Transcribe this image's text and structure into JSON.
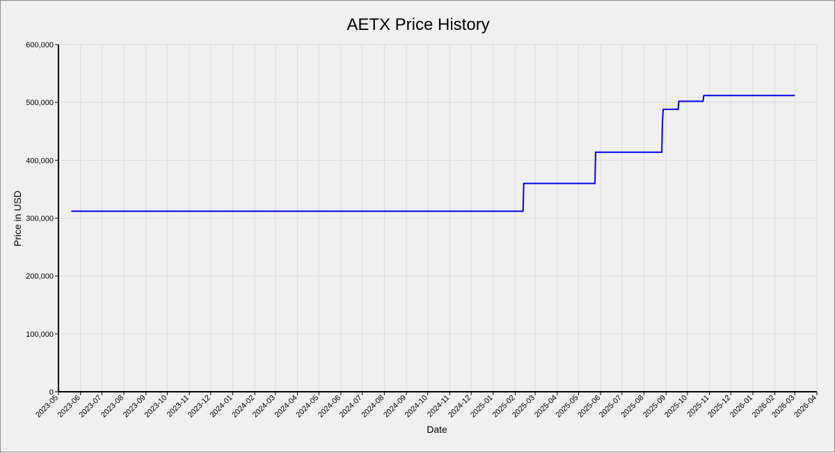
{
  "chart_data": {
    "type": "line",
    "title": "AETX Price History",
    "xlabel": "Date",
    "ylabel": "Price in USD",
    "ylim": [
      0,
      600000
    ],
    "yticks": [
      0,
      100000,
      200000,
      300000,
      400000,
      500000,
      600000
    ],
    "ytick_labels": [
      "0",
      "100,000",
      "200,000",
      "300,000",
      "400,000",
      "500,000",
      "600,000"
    ],
    "xlim": [
      "2023-05-01",
      "2026-04-01"
    ],
    "xtick_labels": [
      "2023-05",
      "2023-06",
      "2023-07",
      "2023-08",
      "2023-09",
      "2023-10",
      "2023-11",
      "2023-12",
      "2024-01",
      "2024-02",
      "2024-03",
      "2024-04",
      "2024-05",
      "2024-06",
      "2024-07",
      "2024-08",
      "2024-09",
      "2024-10",
      "2024-11",
      "2024-12",
      "2025-01",
      "2025-02",
      "2025-03",
      "2025-04",
      "2025-05",
      "2025-06",
      "2025-07",
      "2025-08",
      "2025-09",
      "2025-10",
      "2025-11",
      "2025-12",
      "2026-01",
      "2026-02",
      "2026-03",
      "2026-04"
    ],
    "grid": true,
    "line_color": "#0000ee",
    "series": [
      {
        "x": [
          "2023-05-19",
          "2025-02-12",
          "2025-02-13",
          "2025-05-24",
          "2025-05-25",
          "2025-08-26",
          "2025-08-27",
          "2025-08-28",
          "2025-09-18",
          "2025-09-19",
          "2025-10-23",
          "2025-10-24",
          "2026-03-01"
        ],
        "values": [
          312000,
          312000,
          360000,
          360000,
          414000,
          414000,
          470000,
          488000,
          488000,
          502000,
          502000,
          512000,
          512000
        ]
      }
    ]
  }
}
